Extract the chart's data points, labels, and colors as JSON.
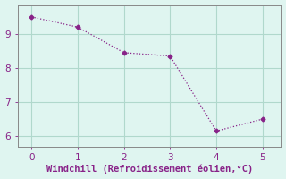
{
  "x": [
    0,
    1,
    2,
    3,
    4,
    5
  ],
  "y": [
    9.5,
    9.2,
    8.45,
    8.35,
    6.15,
    6.5
  ],
  "line_color": "#882288",
  "marker": "D",
  "marker_size": 2.5,
  "bg_color": "#dff5f0",
  "grid_color": "#b0d8cc",
  "xlabel": "Windchill (Refroidissement éolien,°C)",
  "xlabel_color": "#882288",
  "tick_color": "#882288",
  "spine_color": "#888888",
  "xlim": [
    -0.3,
    5.4
  ],
  "ylim": [
    5.7,
    9.85
  ],
  "xticks": [
    0,
    1,
    2,
    3,
    4,
    5
  ],
  "yticks": [
    6,
    7,
    8,
    9
  ],
  "xlabel_fontsize": 7.5,
  "tick_fontsize": 7.5
}
